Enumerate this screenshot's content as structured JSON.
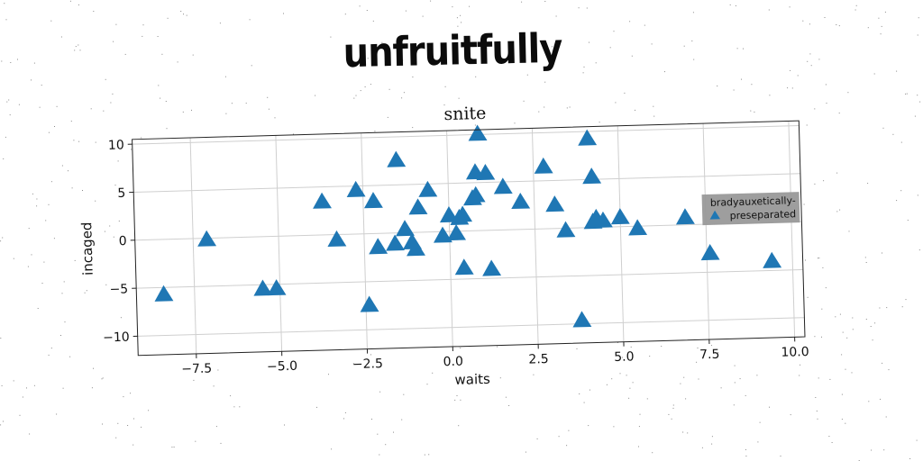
{
  "page": {
    "supertitle": "unfruitfully"
  },
  "chart_data": {
    "type": "scatter",
    "title": "snite",
    "xlabel": "waits",
    "ylabel": "incaged",
    "xlim": [
      -9.2,
      10.3
    ],
    "ylim": [
      -12,
      10.5
    ],
    "xticks": [
      -7.5,
      -5.0,
      -2.5,
      0.0,
      2.5,
      5.0,
      7.5,
      10.0
    ],
    "xtick_labels": [
      "−7.5",
      "−5.0",
      "−2.5",
      "0.0",
      "2.5",
      "5.0",
      "7.5",
      "10.0"
    ],
    "yticks": [
      -10,
      -5,
      0,
      5,
      10
    ],
    "ytick_labels": [
      "−10",
      "−5",
      "0",
      "5",
      "10"
    ],
    "grid": true,
    "marker": "triangle-up",
    "color": "#1f77b4",
    "legend": {
      "placement": "right",
      "entries": [
        "bradyauxetically-preseparated"
      ],
      "line1": "bradyauxetically-",
      "line2": "preseparated",
      "background": "#999999"
    },
    "series": [
      {
        "name": "bradyauxetically-preseparated",
        "points": [
          [
            0.9,
            10.0
          ],
          [
            4.1,
            9.2
          ],
          [
            -1.5,
            7.5
          ],
          [
            0.8,
            6.0
          ],
          [
            1.1,
            5.9
          ],
          [
            2.8,
            6.4
          ],
          [
            4.2,
            5.2
          ],
          [
            -2.7,
            4.5
          ],
          [
            -0.6,
            4.3
          ],
          [
            1.6,
            4.4
          ],
          [
            -3.7,
            3.4
          ],
          [
            -2.2,
            3.3
          ],
          [
            0.7,
            3.3
          ],
          [
            0.8,
            3.6
          ],
          [
            2.1,
            2.8
          ],
          [
            3.1,
            2.4
          ],
          [
            -0.9,
            2.5
          ],
          [
            0.0,
            1.6
          ],
          [
            0.4,
            1.6
          ],
          [
            0.3,
            1.3
          ],
          [
            4.3,
            0.9
          ],
          [
            4.2,
            0.5
          ],
          [
            4.5,
            0.6
          ],
          [
            5.0,
            0.9
          ],
          [
            6.9,
            0.7
          ],
          [
            -1.3,
            0.3
          ],
          [
            -0.2,
            -0.5
          ],
          [
            0.2,
            -0.3
          ],
          [
            3.4,
            -0.3
          ],
          [
            5.5,
            -0.3
          ],
          [
            -7.1,
            -0.2
          ],
          [
            -3.3,
            -0.6
          ],
          [
            -1.1,
            -1.1
          ],
          [
            -1.6,
            -1.2
          ],
          [
            -2.1,
            -1.5
          ],
          [
            -1.0,
            -1.8
          ],
          [
            0.4,
            -3.9
          ],
          [
            1.2,
            -4.1
          ],
          [
            -5.5,
            -5.5
          ],
          [
            -5.1,
            -5.5
          ],
          [
            -8.4,
            -5.8
          ],
          [
            7.6,
            -3.1
          ],
          [
            9.4,
            -4.1
          ],
          [
            -2.4,
            -7.5
          ],
          [
            3.8,
            -9.7
          ]
        ]
      }
    ]
  }
}
